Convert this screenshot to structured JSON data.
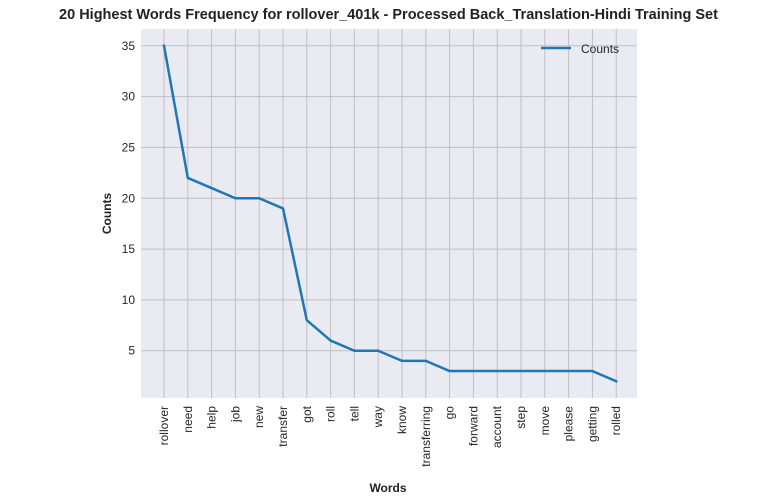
{
  "chart_data": {
    "type": "line",
    "title": "20 Highest Words Frequency for rollover_401k - Processed Back_Translation-Hindi Training Set",
    "xlabel": "Words",
    "ylabel": "Counts",
    "categories": [
      "rollover",
      "need",
      "help",
      "job",
      "new",
      "transfer",
      "got",
      "roll",
      "tell",
      "way",
      "know",
      "transferring",
      "go",
      "forward",
      "account",
      "step",
      "move",
      "please",
      "getting",
      "rolled"
    ],
    "series": [
      {
        "name": "Counts",
        "values": [
          35,
          22,
          21,
          20,
          20,
          19,
          8,
          6,
          5,
          5,
          4,
          4,
          3,
          3,
          3,
          3,
          3,
          3,
          3,
          2
        ],
        "color": "#1f77b4"
      }
    ],
    "ylim": [
      0.35,
      36.65
    ],
    "yticks": [
      5,
      10,
      15,
      20,
      25,
      30,
      35
    ],
    "grid": true,
    "legend": "top-right",
    "background": "#eaeaf2",
    "grid_color": "#c0c0c0"
  }
}
